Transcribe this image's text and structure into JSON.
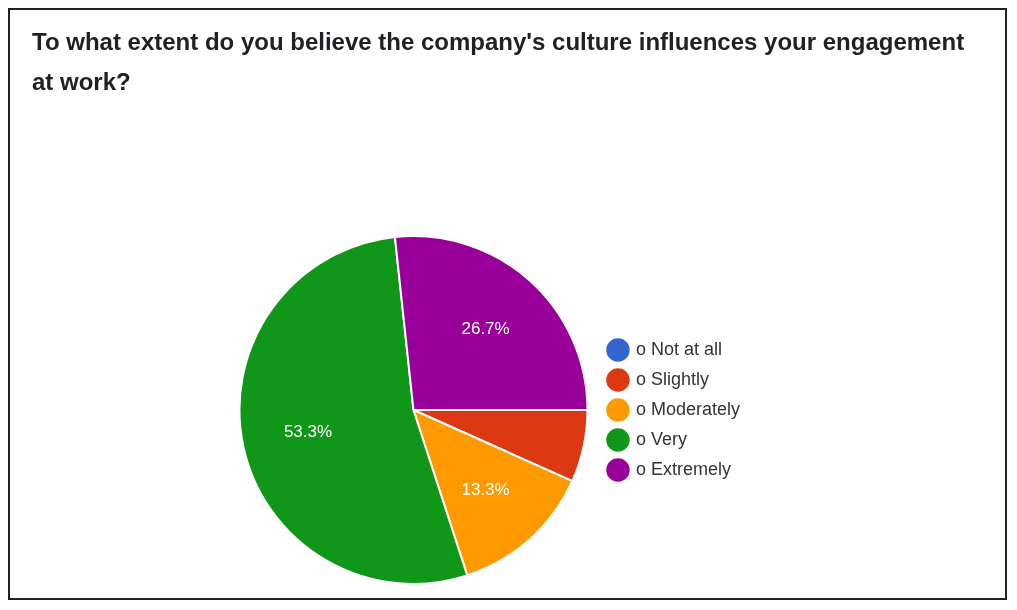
{
  "chart_data": {
    "type": "pie",
    "title": "To what extent do you believe the company's culture influences your engagement at work?",
    "categories": [
      "o Not at all",
      "o Slightly",
      "o Moderately",
      "o Very",
      "o Extremely"
    ],
    "values": [
      0,
      6.7,
      13.3,
      53.3,
      26.7
    ],
    "colors": [
      "#3366cc",
      "#dc3912",
      "#ff9900",
      "#109618",
      "#990099"
    ],
    "value_labels": [
      null,
      null,
      "13.3%",
      "53.3%",
      "26.7%"
    ],
    "legend": "right"
  }
}
